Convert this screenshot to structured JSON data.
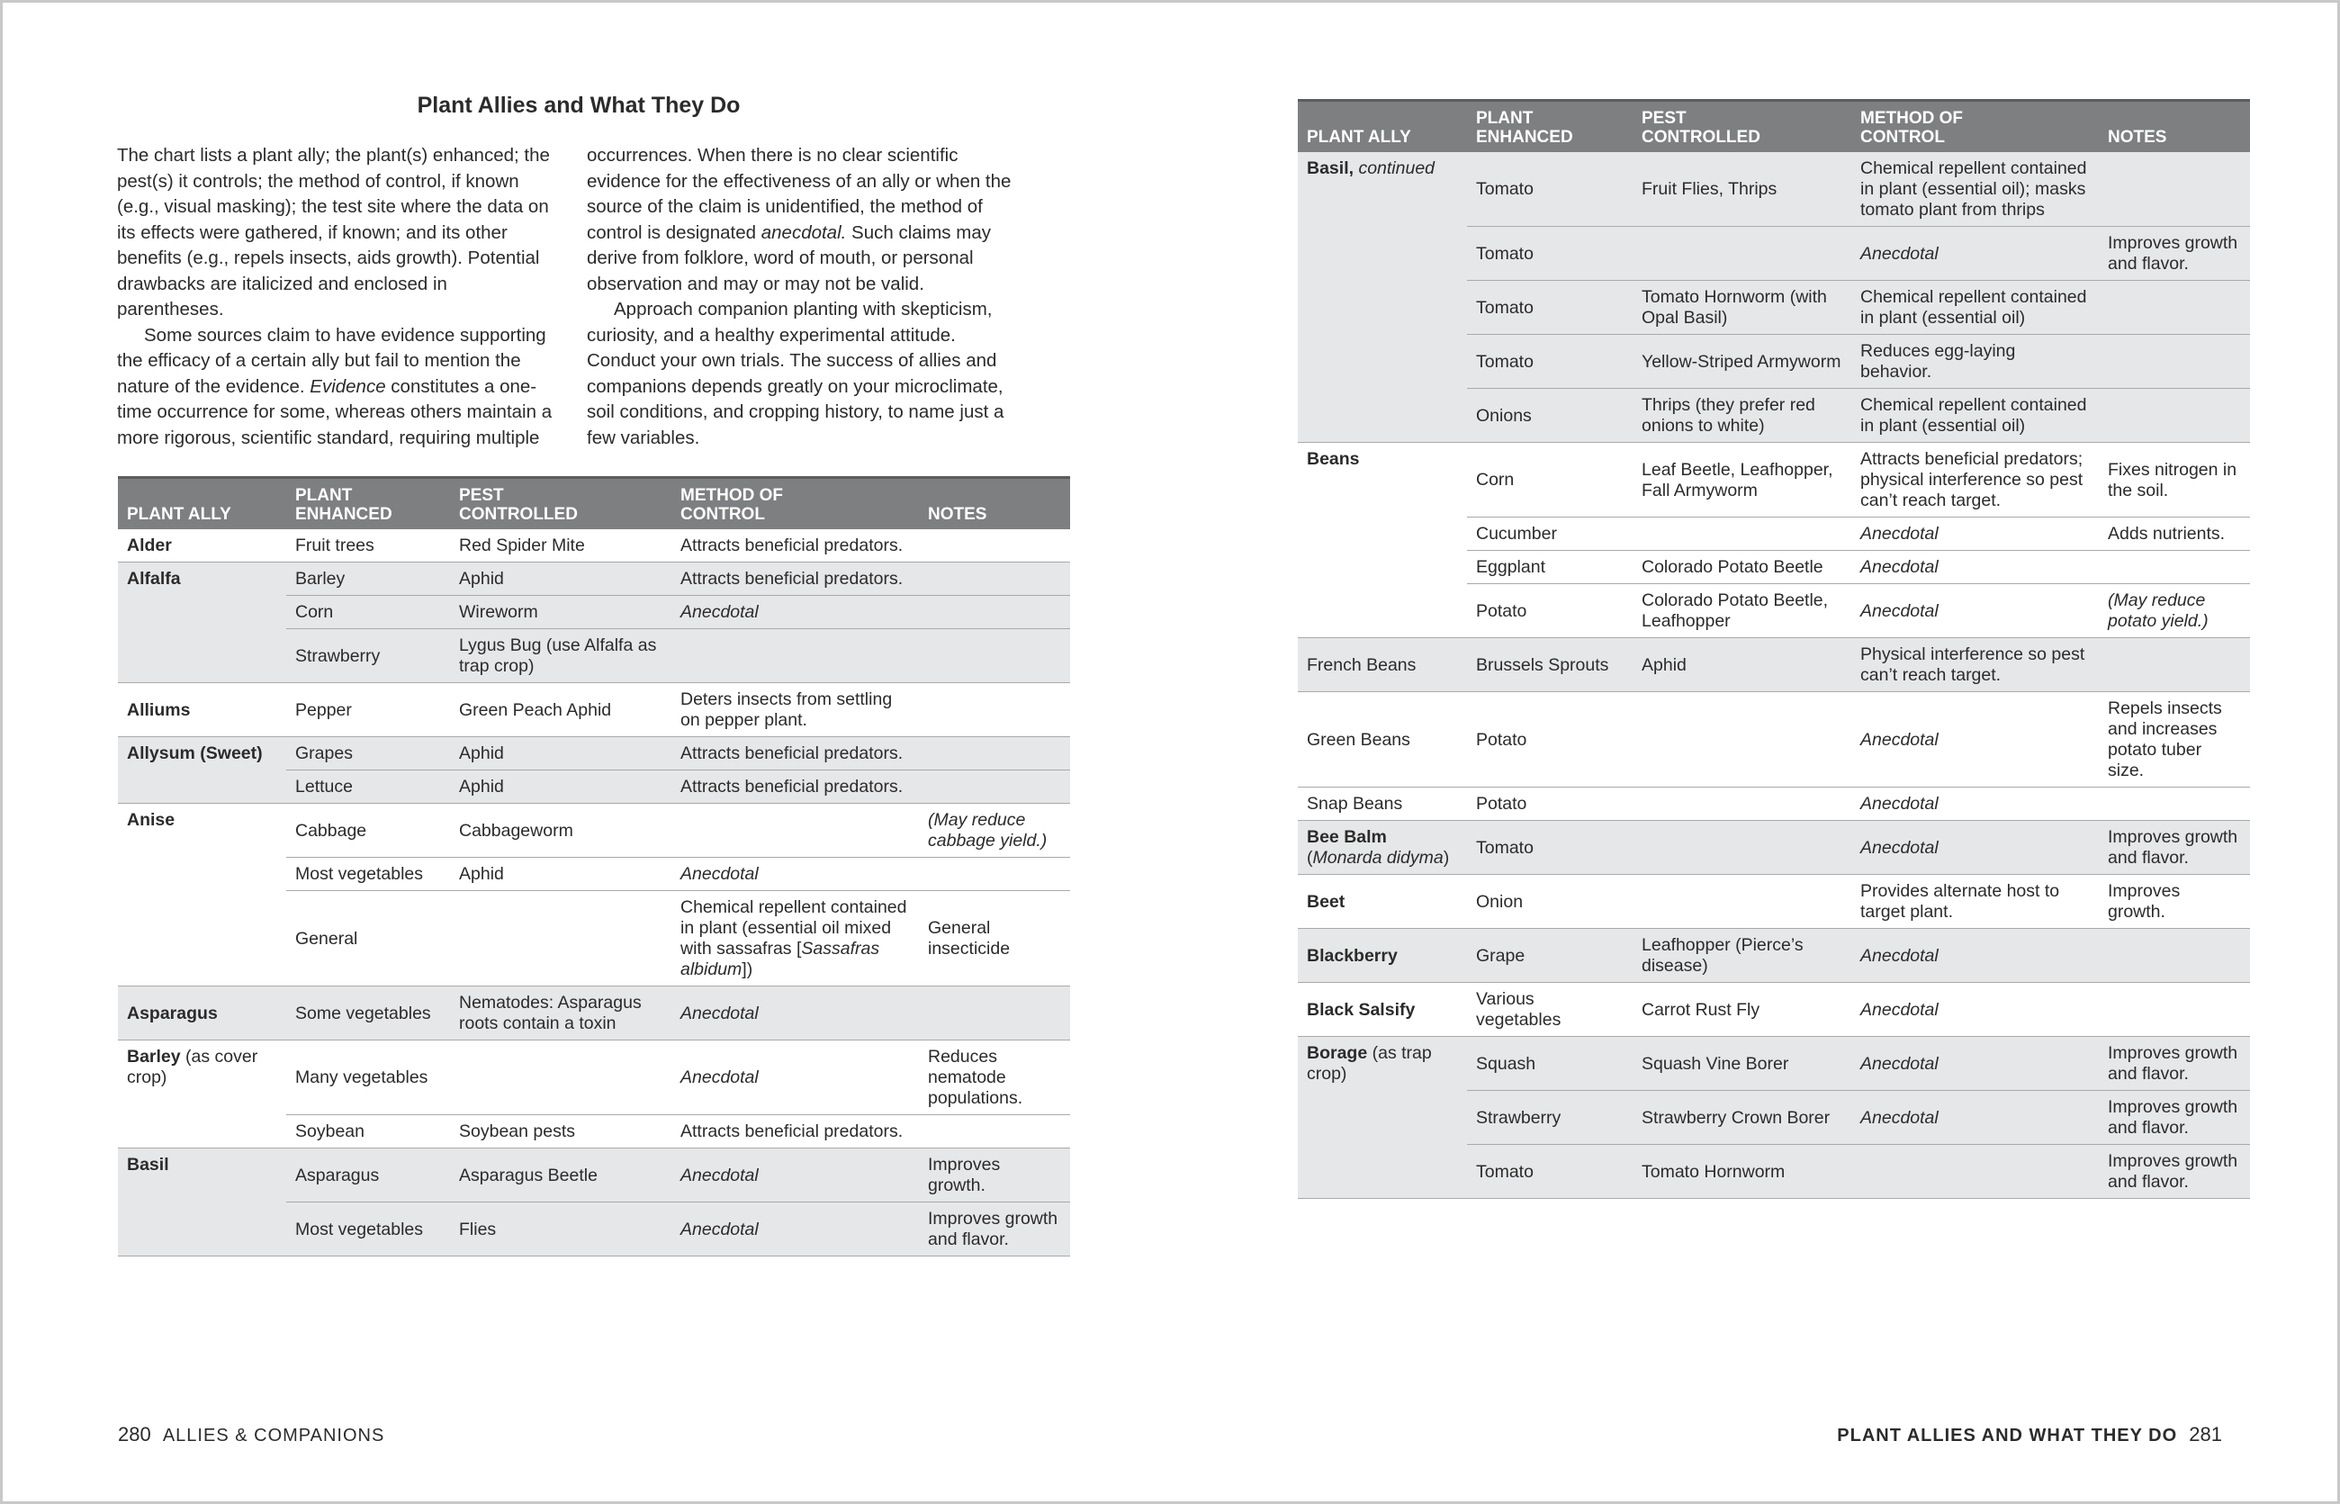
{
  "left_page": {
    "title": "Plant Allies and What They Do",
    "paragraphs": [
      [
        "The chart lists a plant ally; the plant(s) enhanced; the pest(s) it controls; the method of control, if known (e.g., visual masking); the test site where the data on its effects were gathered, if known; and its other benefits (e.g., repels insects, aids growth). Potential drawbacks are italicized and enclosed in parentheses."
      ],
      [
        "Some sources claim to have evidence supporting the efficacy of a certain ally but fail to mention the nature of the evidence. ",
        {
          "italic": "Evidence"
        },
        " constitutes a one-time occurrence for some, whereas others maintain a more rigorous, scientific standard, requiring multiple occurrences. When there is no clear scientific evidence for the effectiveness of an ally or when the source of the claim is unidentified, the method of control is designated ",
        {
          "italic": "anecdotal."
        },
        " Such claims may derive from folklore, word of mouth, or personal observation and may or may not be valid."
      ],
      [
        "Approach companion planting with skepticism, curiosity, and a healthy experimental attitude. Conduct your own trials. The success of allies and companions depends greatly on your microclimate, soil conditions, and cropping history, to name just a few variables."
      ]
    ],
    "table": {
      "headers": [
        "PLANT ALLY",
        "PLANT\nENHANCED",
        "PEST\nCONTROLLED",
        "METHOD OF\nCONTROL",
        "NOTES"
      ],
      "groups": [
        {
          "ally": [
            {
              "bold": "Alder"
            }
          ],
          "shaded": false,
          "rows": [
            [
              "Fruit trees",
              "Red Spider Mite",
              "Attracts beneficial predators.",
              null
            ]
          ]
        },
        {
          "ally": [
            {
              "bold": "Alfalfa"
            }
          ],
          "shaded": true,
          "rows": [
            [
              "Barley",
              "Aphid",
              "Attracts beneficial predators.",
              null
            ],
            [
              "Corn",
              "Wireworm",
              [
                {
                  "italic": "Anecdotal"
                }
              ],
              null
            ],
            [
              "Strawberry",
              "Lygus Bug (use Alfalfa as trap crop)",
              null,
              null
            ]
          ]
        },
        {
          "ally": [
            {
              "bold": "Alliums"
            }
          ],
          "shaded": false,
          "rows": [
            [
              "Pepper",
              "Green Peach Aphid",
              "Deters insects from settling on pepper plant.",
              null
            ]
          ]
        },
        {
          "ally": [
            {
              "bold": "Allysum (Sweet)"
            }
          ],
          "shaded": true,
          "rows": [
            [
              "Grapes",
              "Aphid",
              "Attracts beneficial predators.",
              null
            ],
            [
              "Lettuce",
              "Aphid",
              "Attracts beneficial predators.",
              null
            ]
          ]
        },
        {
          "ally": [
            {
              "bold": "Anise"
            }
          ],
          "shaded": false,
          "rows": [
            [
              "Cabbage",
              "Cabbageworm",
              null,
              [
                {
                  "italic": "(May reduce cabbage yield.)"
                }
              ]
            ],
            [
              "Most vegetables",
              "Aphid",
              [
                {
                  "italic": "Anecdotal"
                }
              ],
              null
            ],
            [
              "General",
              null,
              [
                "Chemical repellent contained in plant (essential oil mixed with sassafras [",
                {
                  "italic": "Sassafras albidum"
                },
                "])"
              ],
              "General insecticide"
            ]
          ]
        },
        {
          "ally": [
            {
              "bold": "Asparagus"
            }
          ],
          "shaded": true,
          "rows": [
            [
              "Some vegetables",
              "Nematodes: Asparagus roots contain a toxin",
              [
                {
                  "italic": "Anecdotal"
                }
              ],
              null
            ]
          ]
        },
        {
          "ally": [
            {
              "bold": "Barley"
            },
            " (as cover crop)"
          ],
          "shaded": false,
          "rows": [
            [
              "Many vegetables",
              null,
              [
                {
                  "italic": "Anecdotal"
                }
              ],
              "Reduces nematode populations."
            ],
            [
              "Soybean",
              "Soybean pests",
              "Attracts beneficial predators.",
              null
            ]
          ]
        },
        {
          "ally": [
            {
              "bold": "Basil"
            }
          ],
          "shaded": true,
          "rows": [
            [
              "Asparagus",
              "Asparagus Beetle",
              [
                {
                  "italic": "Anecdotal"
                }
              ],
              "Improves growth."
            ],
            [
              "Most vegetables",
              "Flies",
              [
                {
                  "italic": "Anecdotal"
                }
              ],
              "Improves growth and flavor."
            ]
          ]
        }
      ]
    },
    "footer": {
      "page": "280",
      "text": "ALLIES & COMPANIONS"
    }
  },
  "right_page": {
    "table": {
      "headers": [
        "PLANT ALLY",
        "PLANT\nENHANCED",
        "PEST\nCONTROLLED",
        "METHOD OF\nCONTROL",
        "NOTES"
      ],
      "groups": [
        {
          "ally": [
            {
              "bold": "Basil,"
            },
            {
              "italic": " continued"
            }
          ],
          "shaded": true,
          "rows": [
            [
              "Tomato",
              "Fruit Flies, Thrips",
              "Chemical repellent contained in plant (essential oil); masks tomato plant from thrips",
              null
            ],
            [
              "Tomato",
              null,
              [
                {
                  "italic": "Anecdotal"
                }
              ],
              "Improves growth and flavor."
            ],
            [
              "Tomato",
              "Tomato Hornworm (with Opal Basil)",
              "Chemical repellent contained in plant (essential oil)",
              null
            ],
            [
              "Tomato",
              "Yellow-Striped Armyworm",
              "Reduces egg-laying behavior.",
              null
            ],
            [
              "Onions",
              "Thrips (they prefer red onions to white)",
              "Chemical repellent contained in plant (essential oil)",
              null
            ]
          ]
        },
        {
          "ally": [
            {
              "bold": "Beans"
            }
          ],
          "shaded": false,
          "rows": [
            [
              "Corn",
              "Leaf Beetle, Leafhopper, Fall Armyworm",
              "Attracts beneficial predators; physical interference so pest can’t reach target.",
              "Fixes nitrogen in the soil."
            ],
            [
              "Cucumber",
              null,
              [
                {
                  "italic": "Anecdotal"
                }
              ],
              "Adds nutrients."
            ],
            [
              "Eggplant",
              "Colorado Potato Beetle",
              [
                {
                  "italic": "Anecdotal"
                }
              ],
              null
            ],
            [
              "Potato",
              "Colorado Potato Beetle, Leafhopper",
              [
                {
                  "italic": "Anecdotal"
                }
              ],
              [
                {
                  "italic": "(May reduce potato yield.)"
                }
              ]
            ]
          ]
        },
        {
          "ally": [
            "French Beans"
          ],
          "shaded": true,
          "rows": [
            [
              "Brussels Sprouts",
              "Aphid",
              "Physical interference so pest can’t reach target.",
              null
            ]
          ]
        },
        {
          "ally": [
            "Green Beans"
          ],
          "shaded": false,
          "rows": [
            [
              "Potato",
              null,
              [
                {
                  "italic": "Anecdotal"
                }
              ],
              "Repels insects and increases potato tuber size."
            ]
          ]
        },
        {
          "ally": [
            "Snap Beans"
          ],
          "shaded": false,
          "rows": [
            [
              "Potato",
              null,
              [
                {
                  "italic": "Anecdotal"
                }
              ],
              null
            ]
          ]
        },
        {
          "ally": [
            {
              "bold": "Bee Balm"
            },
            " (",
            {
              "italic": "Monarda didyma"
            },
            ")"
          ],
          "shaded": true,
          "rows": [
            [
              "Tomato",
              null,
              [
                {
                  "italic": "Anecdotal"
                }
              ],
              "Improves growth and flavor."
            ]
          ]
        },
        {
          "ally": [
            {
              "bold": "Beet"
            }
          ],
          "shaded": false,
          "rows": [
            [
              "Onion",
              null,
              "Provides alternate host to target plant.",
              "Improves growth."
            ]
          ]
        },
        {
          "ally": [
            {
              "bold": "Blackberry"
            }
          ],
          "shaded": true,
          "rows": [
            [
              "Grape",
              "Leafhopper (Pierce’s disease)",
              [
                {
                  "italic": "Anecdotal"
                }
              ],
              null
            ]
          ]
        },
        {
          "ally": [
            {
              "bold": "Black Salsify"
            }
          ],
          "shaded": false,
          "rows": [
            [
              "Various vegetables",
              "Carrot Rust Fly",
              [
                {
                  "italic": "Anecdotal"
                }
              ],
              null
            ]
          ]
        },
        {
          "ally": [
            {
              "bold": "Borage"
            },
            " (as trap crop)"
          ],
          "shaded": true,
          "rows": [
            [
              "Squash",
              "Squash Vine Borer",
              [
                {
                  "italic": "Anecdotal"
                }
              ],
              "Improves growth and flavor."
            ],
            [
              "Strawberry",
              "Strawberry Crown Borer",
              [
                {
                  "italic": "Anecdotal"
                }
              ],
              "Improves growth and flavor."
            ],
            [
              "Tomato",
              "Tomato Hornworm",
              null,
              "Improves growth and flavor."
            ]
          ]
        }
      ]
    },
    "footer": {
      "text": "PLANT ALLIES AND WHAT THEY DO",
      "page": "281"
    }
  }
}
